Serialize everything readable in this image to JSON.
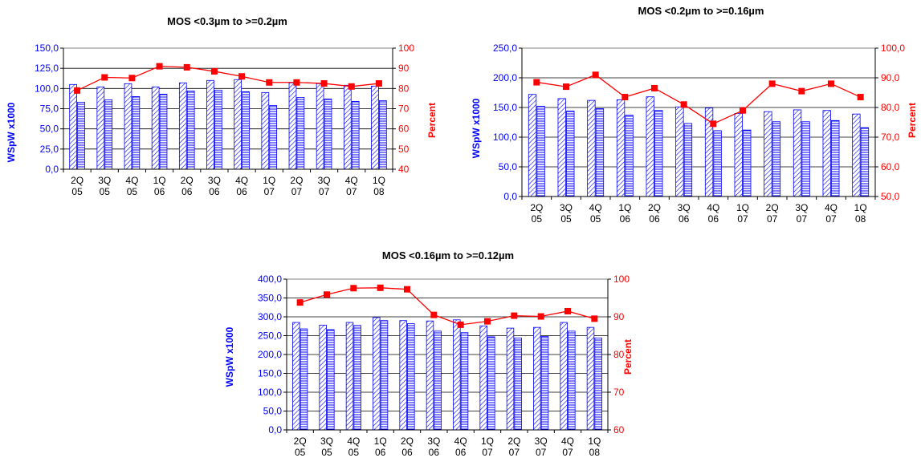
{
  "colors": {
    "bar_stroke": "#0000ff",
    "bar_hatch": "#0000ff",
    "line": "#ff0000",
    "marker": "#ff0000",
    "grid": "#000000",
    "left_axis_text": "#0000ff",
    "right_axis_text": "#ff0000"
  },
  "chart_data": [
    {
      "type": "bar",
      "title": "MOS <0.3µm to >=0.2µm",
      "ylabel": "WSpW x1000",
      "y2label": "Percent",
      "categories": [
        [
          "2Q",
          "05"
        ],
        [
          "3Q",
          "05"
        ],
        [
          "4Q",
          "05"
        ],
        [
          "1Q",
          "06"
        ],
        [
          "2Q",
          "06"
        ],
        [
          "3Q",
          "06"
        ],
        [
          "4Q",
          "06"
        ],
        [
          "1Q",
          "07"
        ],
        [
          "2Q",
          "07"
        ],
        [
          "3Q",
          "07"
        ],
        [
          "4Q",
          "07"
        ],
        [
          "1Q",
          "08"
        ]
      ],
      "series": [
        {
          "values": [
            105,
            102,
            106,
            102,
            107,
            110,
            111,
            95,
            107,
            106,
            104,
            103
          ]
        },
        {
          "values": [
            83,
            86,
            90,
            93,
            97,
            98,
            96,
            79,
            89,
            87,
            84,
            85
          ]
        }
      ],
      "line": {
        "values": [
          79,
          85.5,
          85.2,
          91,
          90.5,
          88.5,
          86,
          83,
          83,
          82.5,
          81,
          82.5
        ]
      },
      "ylim": [
        0,
        150
      ],
      "yticks": [
        "0,0",
        "25,0",
        "50,0",
        "75,0",
        "100,0",
        "125,0",
        "150,0"
      ],
      "y2lim": [
        40,
        100
      ],
      "y2ticks": [
        "40",
        "50",
        "60",
        "70",
        "80",
        "90",
        "100"
      ],
      "grid": true
    },
    {
      "type": "bar",
      "title": "MOS <0.2µm to >=0.16µm",
      "ylabel": "WSpW x1000",
      "y2label": "Percent",
      "categories": [
        [
          "2Q",
          "05"
        ],
        [
          "3Q",
          "05"
        ],
        [
          "4Q",
          "05"
        ],
        [
          "1Q",
          "06"
        ],
        [
          "2Q",
          "06"
        ],
        [
          "3Q",
          "06"
        ],
        [
          "4Q",
          "06"
        ],
        [
          "1Q",
          "07"
        ],
        [
          "2Q",
          "07"
        ],
        [
          "3Q",
          "07"
        ],
        [
          "4Q",
          "07"
        ],
        [
          "1Q",
          "08"
        ]
      ],
      "series": [
        {
          "values": [
            172,
            165,
            162,
            163,
            168,
            151,
            149,
            140,
            143,
            146,
            145,
            139
          ]
        },
        {
          "values": [
            152,
            144,
            148,
            137,
            145,
            123,
            111,
            112,
            126,
            126,
            128,
            116
          ]
        }
      ],
      "line": {
        "values": [
          88.5,
          87,
          91,
          83.5,
          86.5,
          81,
          74.5,
          79,
          88,
          85.5,
          88,
          83.5
        ]
      },
      "ylim": [
        0,
        250
      ],
      "yticks": [
        "0,0",
        "50,0",
        "100,0",
        "150,0",
        "200,0",
        "250,0"
      ],
      "y2lim": [
        50,
        100
      ],
      "y2ticks": [
        "50,0",
        "60,0",
        "70,0",
        "80,0",
        "90,0",
        "100,0"
      ],
      "grid": true
    },
    {
      "type": "bar",
      "title": "MOS <0.16µm to >=0.12µm",
      "ylabel": "WSpW x1000",
      "y2label": "Percent",
      "categories": [
        [
          "2Q",
          "05"
        ],
        [
          "3Q",
          "05"
        ],
        [
          "4Q",
          "05"
        ],
        [
          "1Q",
          "06"
        ],
        [
          "2Q",
          "06"
        ],
        [
          "3Q",
          "06"
        ],
        [
          "4Q",
          "06"
        ],
        [
          "1Q",
          "07"
        ],
        [
          "2Q",
          "07"
        ],
        [
          "3Q",
          "07"
        ],
        [
          "4Q",
          "07"
        ],
        [
          "1Q",
          "08"
        ]
      ],
      "series": [
        {
          "values": [
            285,
            278,
            285,
            298,
            290,
            289,
            292,
            276,
            270,
            272,
            285,
            272
          ]
        },
        {
          "values": [
            268,
            266,
            277,
            290,
            282,
            262,
            258,
            247,
            244,
            248,
            262,
            244
          ]
        }
      ],
      "line": {
        "values": [
          93.8,
          95.9,
          97.6,
          97.7,
          97.3,
          90.5,
          87.9,
          88.8,
          90.3,
          90.1,
          91.5,
          89.5
        ]
      },
      "ylim": [
        0,
        400
      ],
      "yticks": [
        "0,0",
        "50,0",
        "100,0",
        "150,0",
        "200,0",
        "250,0",
        "300,0",
        "350,0",
        "400,0"
      ],
      "y2lim": [
        60,
        100
      ],
      "y2ticks": [
        "60",
        "70",
        "80",
        "90",
        "100"
      ],
      "grid": true
    }
  ]
}
